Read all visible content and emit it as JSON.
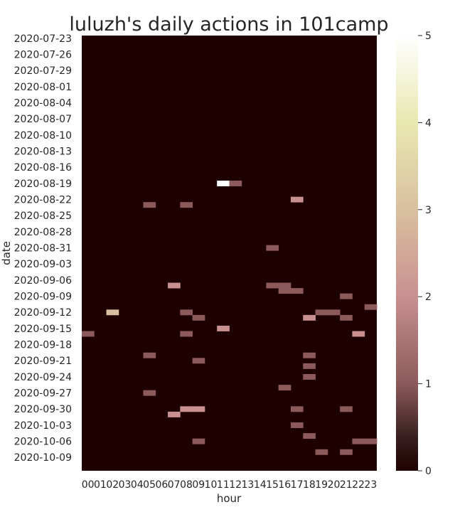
{
  "chart_data": {
    "type": "heatmap",
    "title": "luluzh's daily actions in 101camp",
    "xlabel": "hour",
    "ylabel": "date",
    "x": [
      "00",
      "01",
      "02",
      "03",
      "04",
      "05",
      "06",
      "07",
      "08",
      "09",
      "10",
      "11",
      "12",
      "13",
      "14",
      "15",
      "16",
      "17",
      "18",
      "19",
      "20",
      "21",
      "22",
      "23"
    ],
    "y_start": "2020-07-23",
    "y_end": "2020-10-11",
    "y_tick_labels": [
      "2020-07-23",
      "2020-07-26",
      "2020-07-29",
      "2020-08-01",
      "2020-08-04",
      "2020-08-07",
      "2020-08-10",
      "2020-08-13",
      "2020-08-16",
      "2020-08-19",
      "2020-08-22",
      "2020-08-25",
      "2020-08-28",
      "2020-08-31",
      "2020-09-03",
      "2020-09-06",
      "2020-09-09",
      "2020-09-12",
      "2020-09-15",
      "2020-09-18",
      "2020-09-21",
      "2020-09-24",
      "2020-09-27",
      "2020-09-30",
      "2020-10-03",
      "2020-10-06",
      "2020-10-09"
    ],
    "colorbar": {
      "min": 0,
      "max": 5,
      "ticks": [
        "0",
        "1",
        "2",
        "3",
        "4",
        "5"
      ]
    },
    "cells": [
      {
        "date": "2020-08-19",
        "hour": "11",
        "value": 5
      },
      {
        "date": "2020-08-19",
        "hour": "12",
        "value": 1
      },
      {
        "date": "2020-08-22",
        "hour": "17",
        "value": 2
      },
      {
        "date": "2020-08-23",
        "hour": "05",
        "value": 1
      },
      {
        "date": "2020-08-23",
        "hour": "08",
        "value": 1
      },
      {
        "date": "2020-08-31",
        "hour": "15",
        "value": 1
      },
      {
        "date": "2020-09-07",
        "hour": "07",
        "value": 2
      },
      {
        "date": "2020-09-07",
        "hour": "15",
        "value": 1
      },
      {
        "date": "2020-09-07",
        "hour": "16",
        "value": 1
      },
      {
        "date": "2020-09-08",
        "hour": "16",
        "value": 1
      },
      {
        "date": "2020-09-08",
        "hour": "17",
        "value": 1
      },
      {
        "date": "2020-09-09",
        "hour": "21",
        "value": 1
      },
      {
        "date": "2020-09-11",
        "hour": "23",
        "value": 1
      },
      {
        "date": "2020-09-12",
        "hour": "02",
        "value": 3
      },
      {
        "date": "2020-09-12",
        "hour": "08",
        "value": 1
      },
      {
        "date": "2020-09-12",
        "hour": "19",
        "value": 1
      },
      {
        "date": "2020-09-12",
        "hour": "20",
        "value": 1
      },
      {
        "date": "2020-09-13",
        "hour": "09",
        "value": 1
      },
      {
        "date": "2020-09-13",
        "hour": "18",
        "value": 2
      },
      {
        "date": "2020-09-13",
        "hour": "21",
        "value": 1
      },
      {
        "date": "2020-09-15",
        "hour": "11",
        "value": 2
      },
      {
        "date": "2020-09-16",
        "hour": "00",
        "value": 1
      },
      {
        "date": "2020-09-16",
        "hour": "08",
        "value": 1
      },
      {
        "date": "2020-09-16",
        "hour": "22",
        "value": 2
      },
      {
        "date": "2020-09-20",
        "hour": "05",
        "value": 1
      },
      {
        "date": "2020-09-20",
        "hour": "18",
        "value": 1
      },
      {
        "date": "2020-09-21",
        "hour": "09",
        "value": 1
      },
      {
        "date": "2020-09-22",
        "hour": "18",
        "value": 1
      },
      {
        "date": "2020-09-24",
        "hour": "18",
        "value": 1
      },
      {
        "date": "2020-09-26",
        "hour": "16",
        "value": 1
      },
      {
        "date": "2020-09-27",
        "hour": "05",
        "value": 1
      },
      {
        "date": "2020-09-30",
        "hour": "08",
        "value": 2
      },
      {
        "date": "2020-09-30",
        "hour": "09",
        "value": 2
      },
      {
        "date": "2020-09-30",
        "hour": "17",
        "value": 1
      },
      {
        "date": "2020-09-30",
        "hour": "21",
        "value": 1
      },
      {
        "date": "2020-10-01",
        "hour": "07",
        "value": 2
      },
      {
        "date": "2020-10-03",
        "hour": "17",
        "value": 1
      },
      {
        "date": "2020-10-05",
        "hour": "18",
        "value": 1
      },
      {
        "date": "2020-10-06",
        "hour": "09",
        "value": 1
      },
      {
        "date": "2020-10-06",
        "hour": "22",
        "value": 1
      },
      {
        "date": "2020-10-06",
        "hour": "23",
        "value": 1
      },
      {
        "date": "2020-10-08",
        "hour": "19",
        "value": 1
      },
      {
        "date": "2020-10-08",
        "hour": "21",
        "value": 1
      }
    ],
    "grid": false,
    "colormap": "pink"
  }
}
